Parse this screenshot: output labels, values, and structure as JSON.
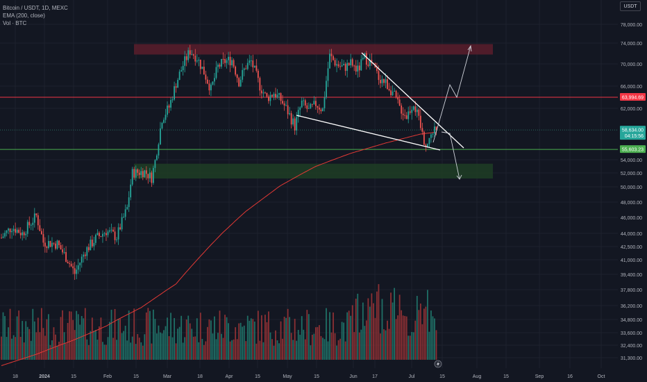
{
  "legend": {
    "symbol": "Bitcoin / USDT, 1D, MEXC",
    "ema": "EMA (200, close)",
    "vol": "Vol · BTC"
  },
  "currency": "USDT",
  "colors": {
    "background": "#131722",
    "up": "#26a69a",
    "down": "#ef5350",
    "ema": "#e53935",
    "resistance_zone": "#5b1d2b",
    "support_zone": "#1f3d24",
    "red_line": "#f23645",
    "green_line": "#4caf50",
    "trendline": "#ffffff"
  },
  "chart_data": {
    "type": "candlestick",
    "x_tick_labels": [
      "18",
      "2024",
      "15",
      "Feb",
      "15",
      "Mar",
      "18",
      "Apr",
      "15",
      "May",
      "15",
      "Jun",
      "17",
      "Jul",
      "15",
      "Aug",
      "15",
      "Sep",
      "16",
      "Oct"
    ],
    "y_tick_labels": [
      "78,000.00",
      "74,000.00",
      "70,000.00",
      "66,000.00",
      "62,000.00",
      "54,000.00",
      "52,000.00",
      "50,000.00",
      "48,000.00",
      "46,000.00",
      "44,000.00",
      "42,500.00",
      "41,000.00",
      "39,400.00",
      "37,800.00",
      "36,200.00",
      "34,800.00",
      "33,600.00",
      "32,400.00",
      "31,300.00"
    ],
    "price_labels": {
      "resistance": "63,994.69",
      "current": "58,634.00",
      "countdown": "04:15:56",
      "support": "55,603.23"
    },
    "levels": {
      "resistance_line": 63994.69,
      "support_line": 55603.23,
      "current_price": 58634.0,
      "resistance_zone": [
        71800,
        73800
      ],
      "support_zone": [
        51200,
        53400
      ]
    },
    "series": [
      {
        "kind": "price_anchors",
        "points": [
          [
            0,
            43500
          ],
          [
            6,
            44800
          ],
          [
            12,
            44000
          ],
          [
            20,
            46200
          ],
          [
            24,
            43000
          ],
          [
            32,
            42800
          ],
          [
            38,
            41000
          ],
          [
            42,
            39500
          ],
          [
            48,
            42000
          ],
          [
            54,
            43400
          ],
          [
            60,
            44300
          ],
          [
            66,
            43600
          ],
          [
            72,
            47200
          ],
          [
            75,
            52000
          ],
          [
            82,
            52200
          ],
          [
            86,
            51300
          ],
          [
            88,
            53800
          ],
          [
            92,
            60500
          ],
          [
            96,
            62200
          ],
          [
            100,
            66500
          ],
          [
            104,
            69800
          ],
          [
            108,
            72500
          ],
          [
            112,
            71200
          ],
          [
            116,
            68500
          ],
          [
            120,
            65400
          ],
          [
            124,
            69500
          ],
          [
            128,
            70500
          ],
          [
            132,
            70800
          ],
          [
            136,
            66800
          ],
          [
            140,
            69600
          ],
          [
            143,
            70500
          ],
          [
            148,
            66000
          ],
          [
            152,
            63800
          ],
          [
            156,
            64800
          ],
          [
            160,
            63500
          ],
          [
            164,
            61500
          ],
          [
            168,
            59200
          ],
          [
            172,
            63000
          ],
          [
            176,
            61600
          ],
          [
            180,
            62800
          ],
          [
            184,
            61800
          ],
          [
            186,
            67000
          ],
          [
            188,
            71500
          ],
          [
            192,
            69900
          ],
          [
            196,
            69300
          ],
          [
            200,
            70100
          ],
          [
            204,
            68800
          ],
          [
            208,
            71200
          ],
          [
            212,
            70000
          ],
          [
            216,
            67600
          ],
          [
            220,
            66600
          ],
          [
            224,
            64900
          ],
          [
            228,
            62200
          ],
          [
            232,
            60800
          ],
          [
            236,
            63000
          ],
          [
            240,
            59000
          ],
          [
            242,
            57000
          ],
          [
            244,
            56400
          ],
          [
            246,
            57800
          ],
          [
            249,
            58634
          ]
        ]
      },
      {
        "kind": "ema",
        "points": [
          [
            0,
            30600
          ],
          [
            20,
            31600
          ],
          [
            40,
            32800
          ],
          [
            60,
            34200
          ],
          [
            80,
            36000
          ],
          [
            100,
            38400
          ],
          [
            120,
            42700
          ],
          [
            140,
            46800
          ],
          [
            160,
            50200
          ],
          [
            180,
            53000
          ],
          [
            200,
            55000
          ],
          [
            220,
            56600
          ],
          [
            240,
            58000
          ],
          [
            249,
            58300
          ]
        ]
      }
    ]
  }
}
